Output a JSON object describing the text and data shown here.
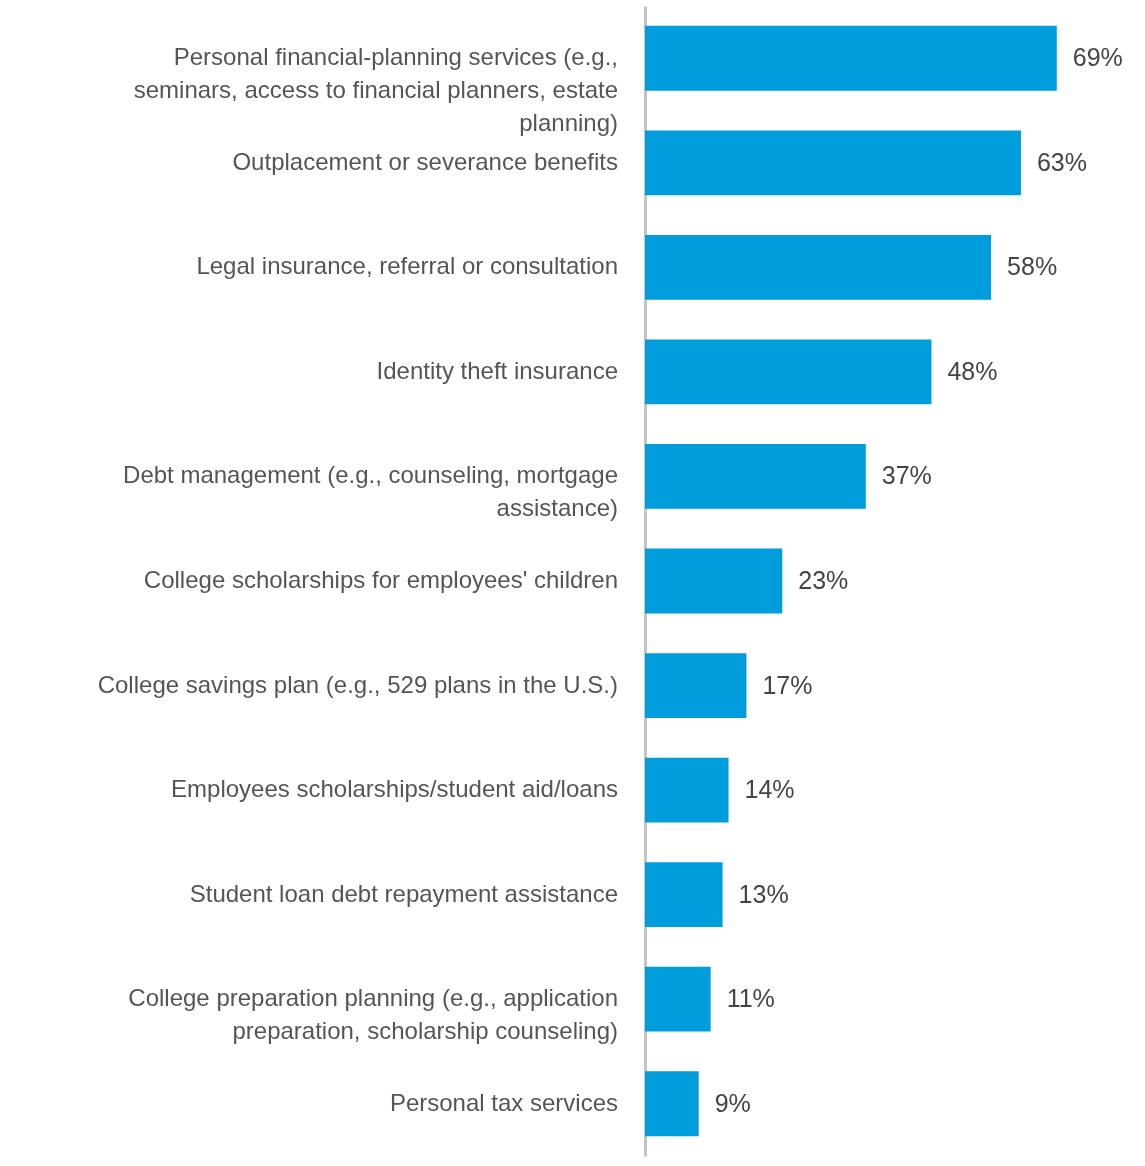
{
  "chart_data": {
    "type": "bar",
    "orientation": "horizontal",
    "categories": [
      "Personal financial-planning services (e.g., seminars, access to financial planners, estate planning)",
      "Outplacement or severance benefits",
      "Legal insurance, referral or consultation",
      "Identity theft insurance",
      "Debt management (e.g., counseling, mortgage assistance)",
      "College scholarships for employees' children",
      "College savings plan (e.g., 529 plans in the U.S.)",
      "Employees scholarships/student aid/loans",
      "Student loan debt repayment assistance",
      "College preparation planning (e.g., application preparation, scholarship counseling)",
      "Personal tax services"
    ],
    "values": [
      69,
      63,
      58,
      48,
      37,
      23,
      17,
      14,
      13,
      11,
      9
    ],
    "value_labels": [
      "69%",
      "63%",
      "58%",
      "48%",
      "37%",
      "23%",
      "17%",
      "14%",
      "13%",
      "11%",
      "9%"
    ],
    "color": "#009ddc",
    "grid": false
  }
}
